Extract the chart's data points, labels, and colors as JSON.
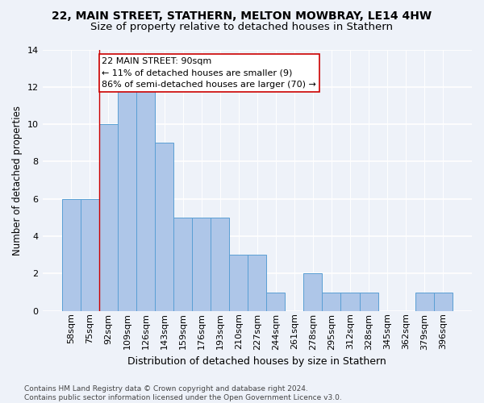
{
  "title1": "22, MAIN STREET, STATHERN, MELTON MOWBRAY, LE14 4HW",
  "title2": "Size of property relative to detached houses in Stathern",
  "xlabel": "Distribution of detached houses by size in Stathern",
  "ylabel": "Number of detached properties",
  "categories": [
    "58sqm",
    "75sqm",
    "92sqm",
    "109sqm",
    "126sqm",
    "143sqm",
    "159sqm",
    "176sqm",
    "193sqm",
    "210sqm",
    "227sqm",
    "244sqm",
    "261sqm",
    "278sqm",
    "295sqm",
    "312sqm",
    "328sqm",
    "345sqm",
    "362sqm",
    "379sqm",
    "396sqm"
  ],
  "values": [
    6,
    6,
    10,
    12,
    12,
    9,
    5,
    5,
    5,
    3,
    3,
    1,
    0,
    2,
    1,
    1,
    1,
    0,
    0,
    1,
    1
  ],
  "bar_color": "#aec6e8",
  "bar_edge_color": "#5a9fd4",
  "highlight_color": "#cc0000",
  "annotation_text": "22 MAIN STREET: 90sqm\n← 11% of detached houses are smaller (9)\n86% of semi-detached houses are larger (70) →",
  "annotation_box_color": "#ffffff",
  "annotation_box_edge_color": "#cc0000",
  "ylim": [
    0,
    14
  ],
  "yticks": [
    0,
    2,
    4,
    6,
    8,
    10,
    12,
    14
  ],
  "footer": "Contains HM Land Registry data © Crown copyright and database right 2024.\nContains public sector information licensed under the Open Government Licence v3.0.",
  "background_color": "#eef2f9",
  "grid_color": "#ffffff",
  "title1_fontsize": 10,
  "title2_fontsize": 9.5,
  "xlabel_fontsize": 9,
  "ylabel_fontsize": 8.5,
  "tick_fontsize": 8,
  "annotation_fontsize": 8,
  "footer_fontsize": 6.5
}
